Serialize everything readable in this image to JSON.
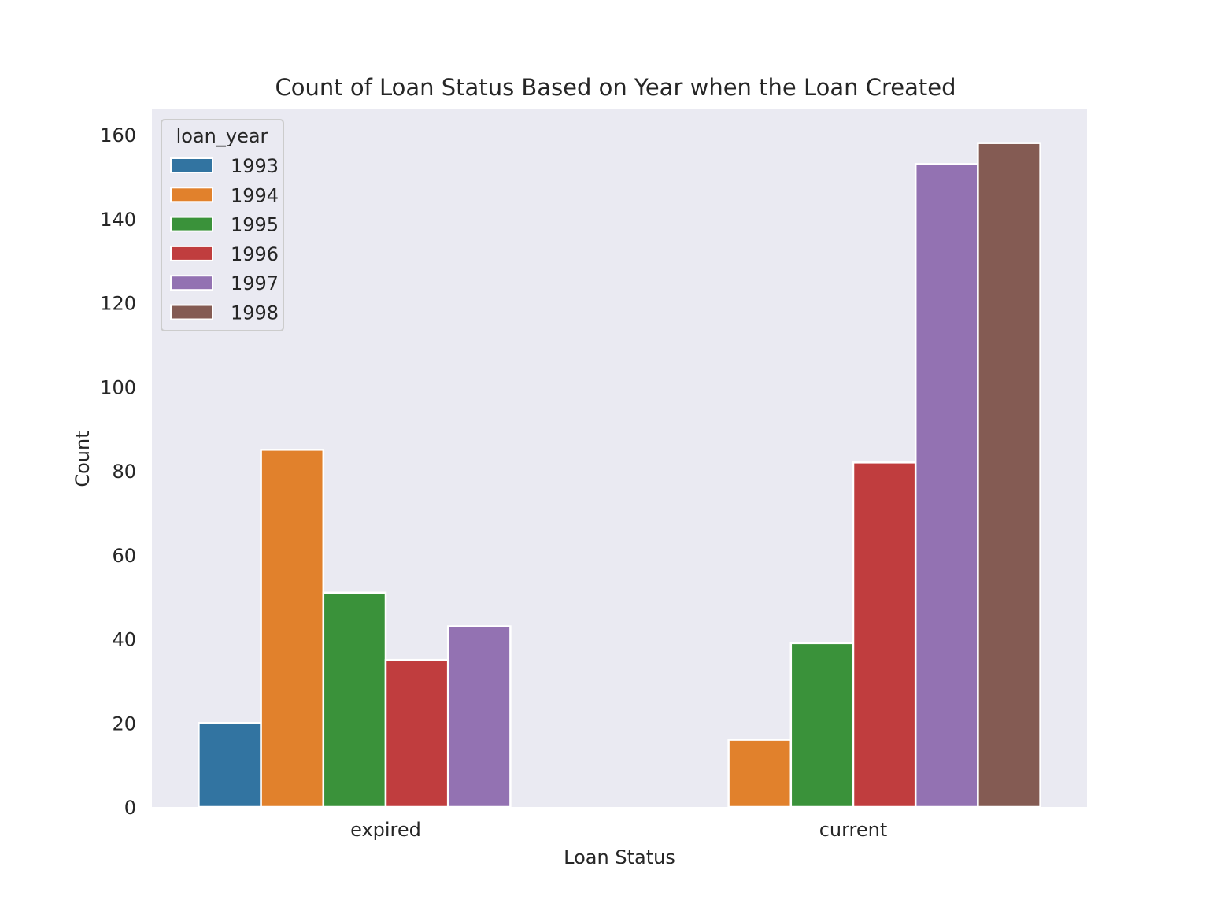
{
  "chart_data": {
    "type": "bar",
    "title": "Count of Loan Status Based on Year when the Loan Created",
    "xlabel": "Loan Status",
    "ylabel": "Count",
    "categories": [
      "expired",
      "current"
    ],
    "ylim": [
      0,
      166
    ],
    "yticks": [
      0,
      20,
      40,
      60,
      80,
      100,
      120,
      140,
      160
    ],
    "grid": false,
    "legend": {
      "title": "loan_year",
      "placement": "top-left"
    },
    "series": [
      {
        "name": "1993",
        "color": "#3274a1",
        "values": [
          20,
          null
        ]
      },
      {
        "name": "1994",
        "color": "#e1812c",
        "values": [
          85,
          16
        ]
      },
      {
        "name": "1995",
        "color": "#3a923a",
        "values": [
          51,
          39
        ]
      },
      {
        "name": "1996",
        "color": "#c03d3e",
        "values": [
          35,
          82
        ]
      },
      {
        "name": "1997",
        "color": "#9372b2",
        "values": [
          43,
          153
        ]
      },
      {
        "name": "1998",
        "color": "#845b53",
        "values": [
          null,
          158
        ]
      }
    ],
    "colors": {
      "plot_background": "#eaeaf2",
      "bar_edge": "#ffffff",
      "text": "#262626"
    }
  }
}
